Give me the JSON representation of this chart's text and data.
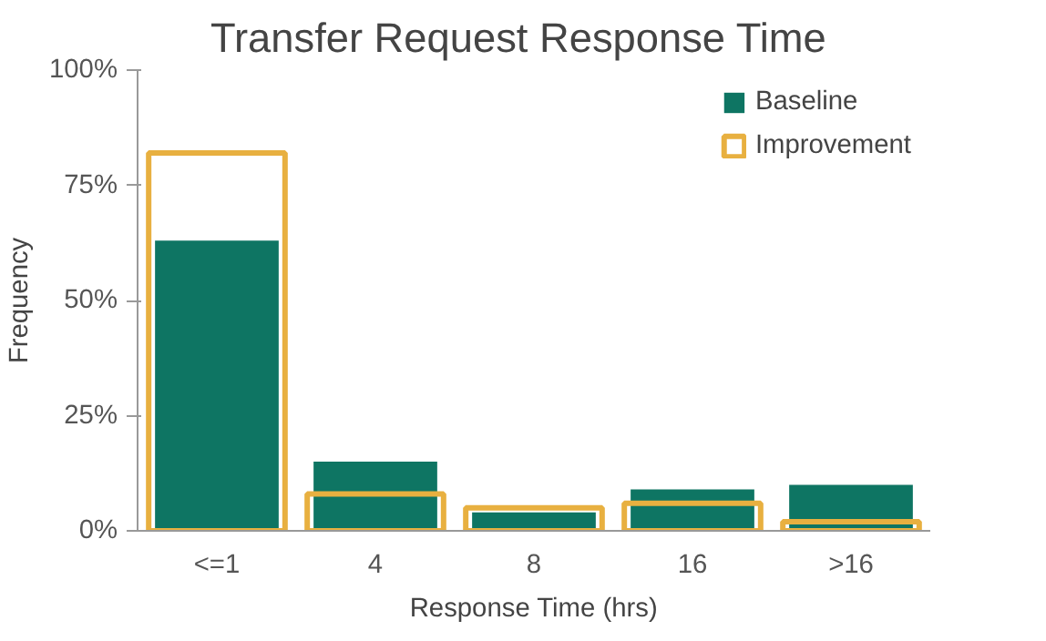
{
  "chart_data": {
    "type": "bar",
    "title": "Transfer Request Response Time",
    "xlabel": "Response Time (hrs)",
    "ylabel": "Frequency",
    "categories": [
      "<=1",
      "4",
      "8",
      "16",
      ">16"
    ],
    "series": [
      {
        "name": "Baseline",
        "color": "#0e7563",
        "values": [
          63,
          15,
          4,
          9,
          10
        ]
      },
      {
        "name": "Improvement",
        "color": "#e8b040",
        "values": [
          82,
          8,
          5,
          6,
          2
        ]
      }
    ],
    "ylim": [
      0,
      100
    ],
    "yticks": [
      {
        "value": 0,
        "label": "0%"
      },
      {
        "value": 25,
        "label": "25%"
      },
      {
        "value": 50,
        "label": "50%"
      },
      {
        "value": 75,
        "label": "75%"
      },
      {
        "value": 100,
        "label": "100%"
      }
    ],
    "grid": false,
    "legend": "top right"
  }
}
